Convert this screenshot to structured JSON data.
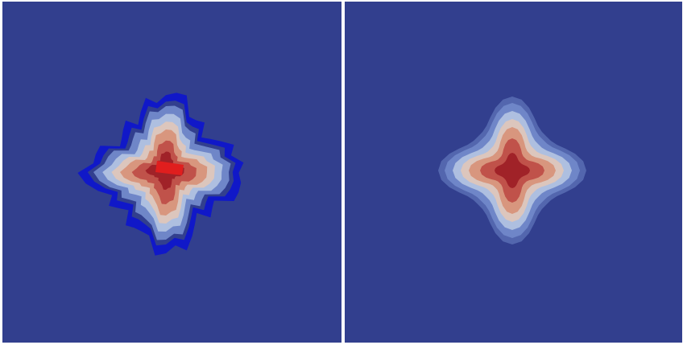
{
  "panels": [
    {
      "id": "left",
      "description_name": "noisy-field-render",
      "colors": {
        "background": "#323f8e",
        "blue_artifact": "#1018c8",
        "low": "#6f86c8",
        "mid_low": "#aebfe0",
        "mid": "#dcc6bd",
        "mid_high": "#d8967e",
        "high": "#c0524a",
        "peak": "#a02228",
        "hot": "#e01e1e"
      }
    },
    {
      "id": "right",
      "description_name": "smooth-field-render",
      "colors": {
        "background": "#323f8e",
        "low": "#6f86c8",
        "mid_low": "#aebfe0",
        "mid": "#dcc6bd",
        "mid_high": "#d8967e",
        "high": "#c0524a",
        "peak": "#a02228"
      }
    }
  ]
}
